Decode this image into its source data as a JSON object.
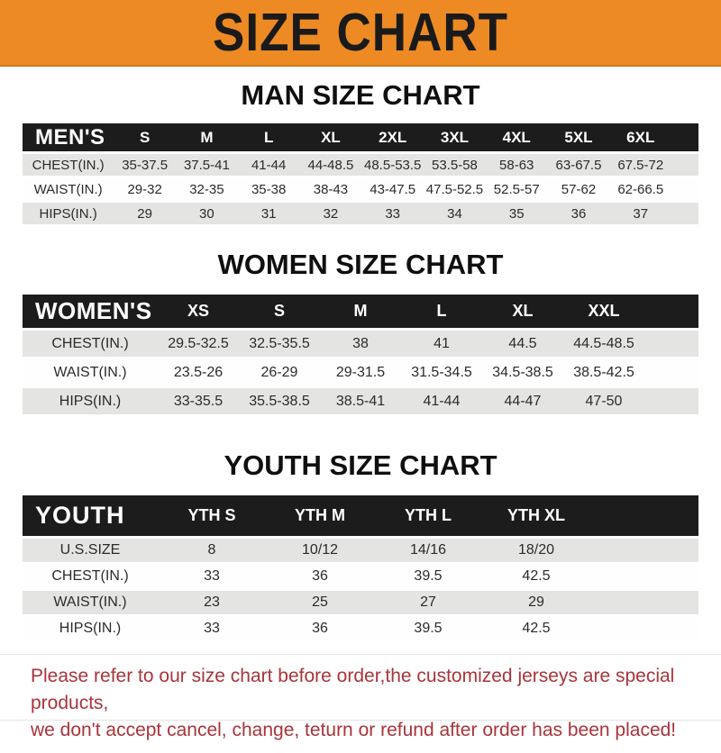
{
  "banner": {
    "title": "SIZE CHART"
  },
  "colors": {
    "page_bg": "#FFFFFF",
    "banner_bg": "#ED8A24",
    "banner_text": "#1A1A1A",
    "header_bar_bg": "#1C1C1C",
    "header_bar_text": "#FFFFFF",
    "row_alt_bg": "#E4E4E2",
    "row_bg": "#FEFEFE",
    "cell_text": "#2B2B2B",
    "notice_text": "#A8343A"
  },
  "sections": [
    {
      "key": "men",
      "title": "MAN SIZE CHART",
      "header_label": "MEN'S",
      "columns": [
        "S",
        "M",
        "L",
        "XL",
        "2XL",
        "3XL",
        "4XL",
        "5XL",
        "6XL"
      ],
      "rows": [
        {
          "label": "CHEST(IN.)",
          "values": [
            "35-37.5",
            "37.5-41",
            "41-44",
            "44-48.5",
            "48.5-53.5",
            "53.5-58",
            "58-63",
            "63-67.5",
            "67.5-72"
          ]
        },
        {
          "label": "WAIST(IN.)",
          "values": [
            "29-32",
            "32-35",
            "35-38",
            "38-43",
            "43-47.5",
            "47.5-52.5",
            "52.5-57",
            "57-62",
            "62-66.5"
          ]
        },
        {
          "label": "HIPS(IN.)",
          "values": [
            "29",
            "30",
            "31",
            "32",
            "33",
            "34",
            "35",
            "36",
            "37"
          ]
        }
      ]
    },
    {
      "key": "women",
      "title": "WOMEN SIZE CHART",
      "header_label": "WOMEN'S",
      "columns": [
        "XS",
        "S",
        "M",
        "L",
        "XL",
        "XXL"
      ],
      "rows": [
        {
          "label": "CHEST(IN.)",
          "values": [
            "29.5-32.5",
            "32.5-35.5",
            "38",
            "41",
            "44.5",
            "44.5-48.5"
          ]
        },
        {
          "label": "WAIST(IN.)",
          "values": [
            "23.5-26",
            "26-29",
            "29-31.5",
            "31.5-34.5",
            "34.5-38.5",
            "38.5-42.5"
          ]
        },
        {
          "label": "HIPS(IN.)",
          "values": [
            "33-35.5",
            "35.5-38.5",
            "38.5-41",
            "41-44",
            "44-47",
            "47-50"
          ]
        }
      ]
    },
    {
      "key": "youth",
      "title": "YOUTH SIZE CHART",
      "header_label": "YOUTH",
      "columns": [
        "YTH S",
        "YTH M",
        "YTH L",
        "YTH XL"
      ],
      "rows": [
        {
          "label": "U.S.SIZE",
          "values": [
            "8",
            "10/12",
            "14/16",
            "18/20"
          ]
        },
        {
          "label": "CHEST(IN.)",
          "values": [
            "33",
            "36",
            "39.5",
            "42.5"
          ]
        },
        {
          "label": "WAIST(IN.)",
          "values": [
            "23",
            "25",
            "27",
            "29"
          ]
        },
        {
          "label": "HIPS(IN.)",
          "values": [
            "33",
            "36",
            "39.5",
            "42.5"
          ]
        }
      ]
    }
  ],
  "footer": {
    "line1": "Please refer to our size chart before order,the customized jerseys are special products,",
    "line2": "we don't accept cancel, change, teturn or refund after order has been placed!"
  }
}
